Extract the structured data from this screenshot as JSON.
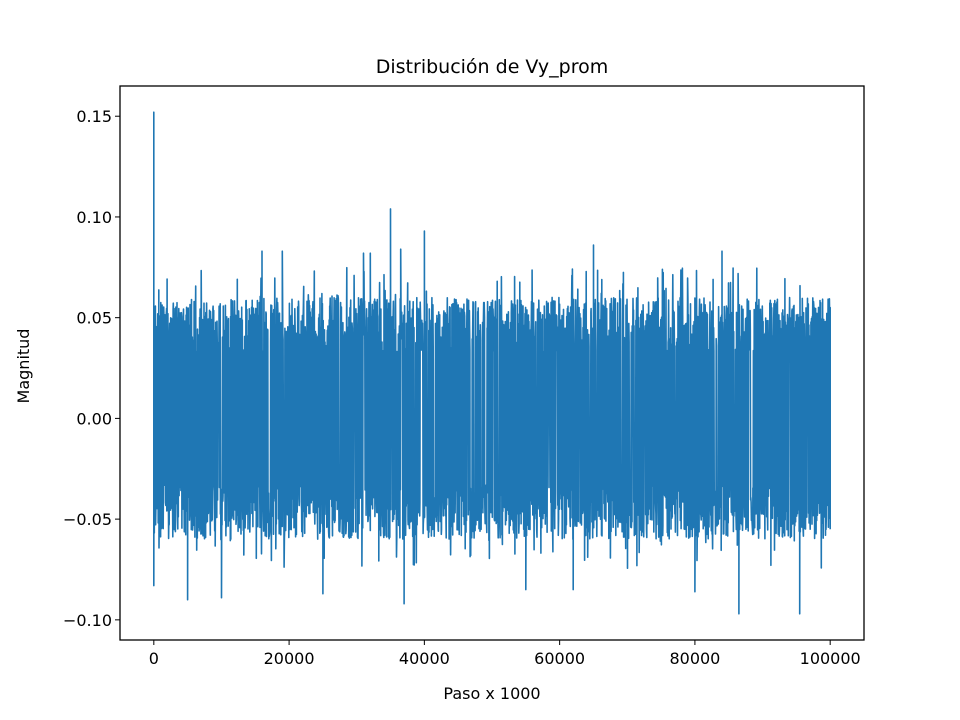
{
  "chart_data": {
    "type": "line",
    "title": "Distribución de Vy_prom",
    "xlabel": "Paso x 1000",
    "ylabel": "Magnitud",
    "xlim": [
      -5000,
      105000
    ],
    "ylim": [
      -0.11,
      0.165
    ],
    "x_ticks": [
      0,
      20000,
      40000,
      60000,
      80000,
      100000
    ],
    "x_tick_labels": [
      "0",
      "20000",
      "40000",
      "60000",
      "80000",
      "100000"
    ],
    "y_ticks": [
      -0.1,
      -0.05,
      0.0,
      0.05,
      0.1,
      0.15
    ],
    "y_tick_labels": [
      "−0.10",
      "−0.05",
      "0.00",
      "0.05",
      "0.10",
      "0.15"
    ],
    "grid": false,
    "legend": "none",
    "series": [
      {
        "color": "#1f77b4",
        "x_range": [
          0,
          100000
        ],
        "band": [
          -0.06,
          0.06
        ],
        "peaks_x": [
          0,
          16000,
          19000,
          31000,
          32000,
          35000,
          36500,
          40000,
          65000,
          84000,
          100000
        ],
        "peaks_y": [
          0.152,
          0.083,
          0.083,
          0.082,
          0.082,
          0.104,
          0.084,
          0.093,
          0.086,
          0.083,
          0.055
        ],
        "troughs_x": [
          0,
          5000,
          10000,
          25000,
          37000,
          55000,
          62000,
          80000,
          86500,
          95500,
          100000
        ],
        "troughs_y": [
          -0.083,
          -0.09,
          -0.089,
          -0.087,
          -0.092,
          -0.085,
          -0.085,
          -0.086,
          -0.097,
          -0.097,
          -0.055
        ]
      }
    ]
  }
}
